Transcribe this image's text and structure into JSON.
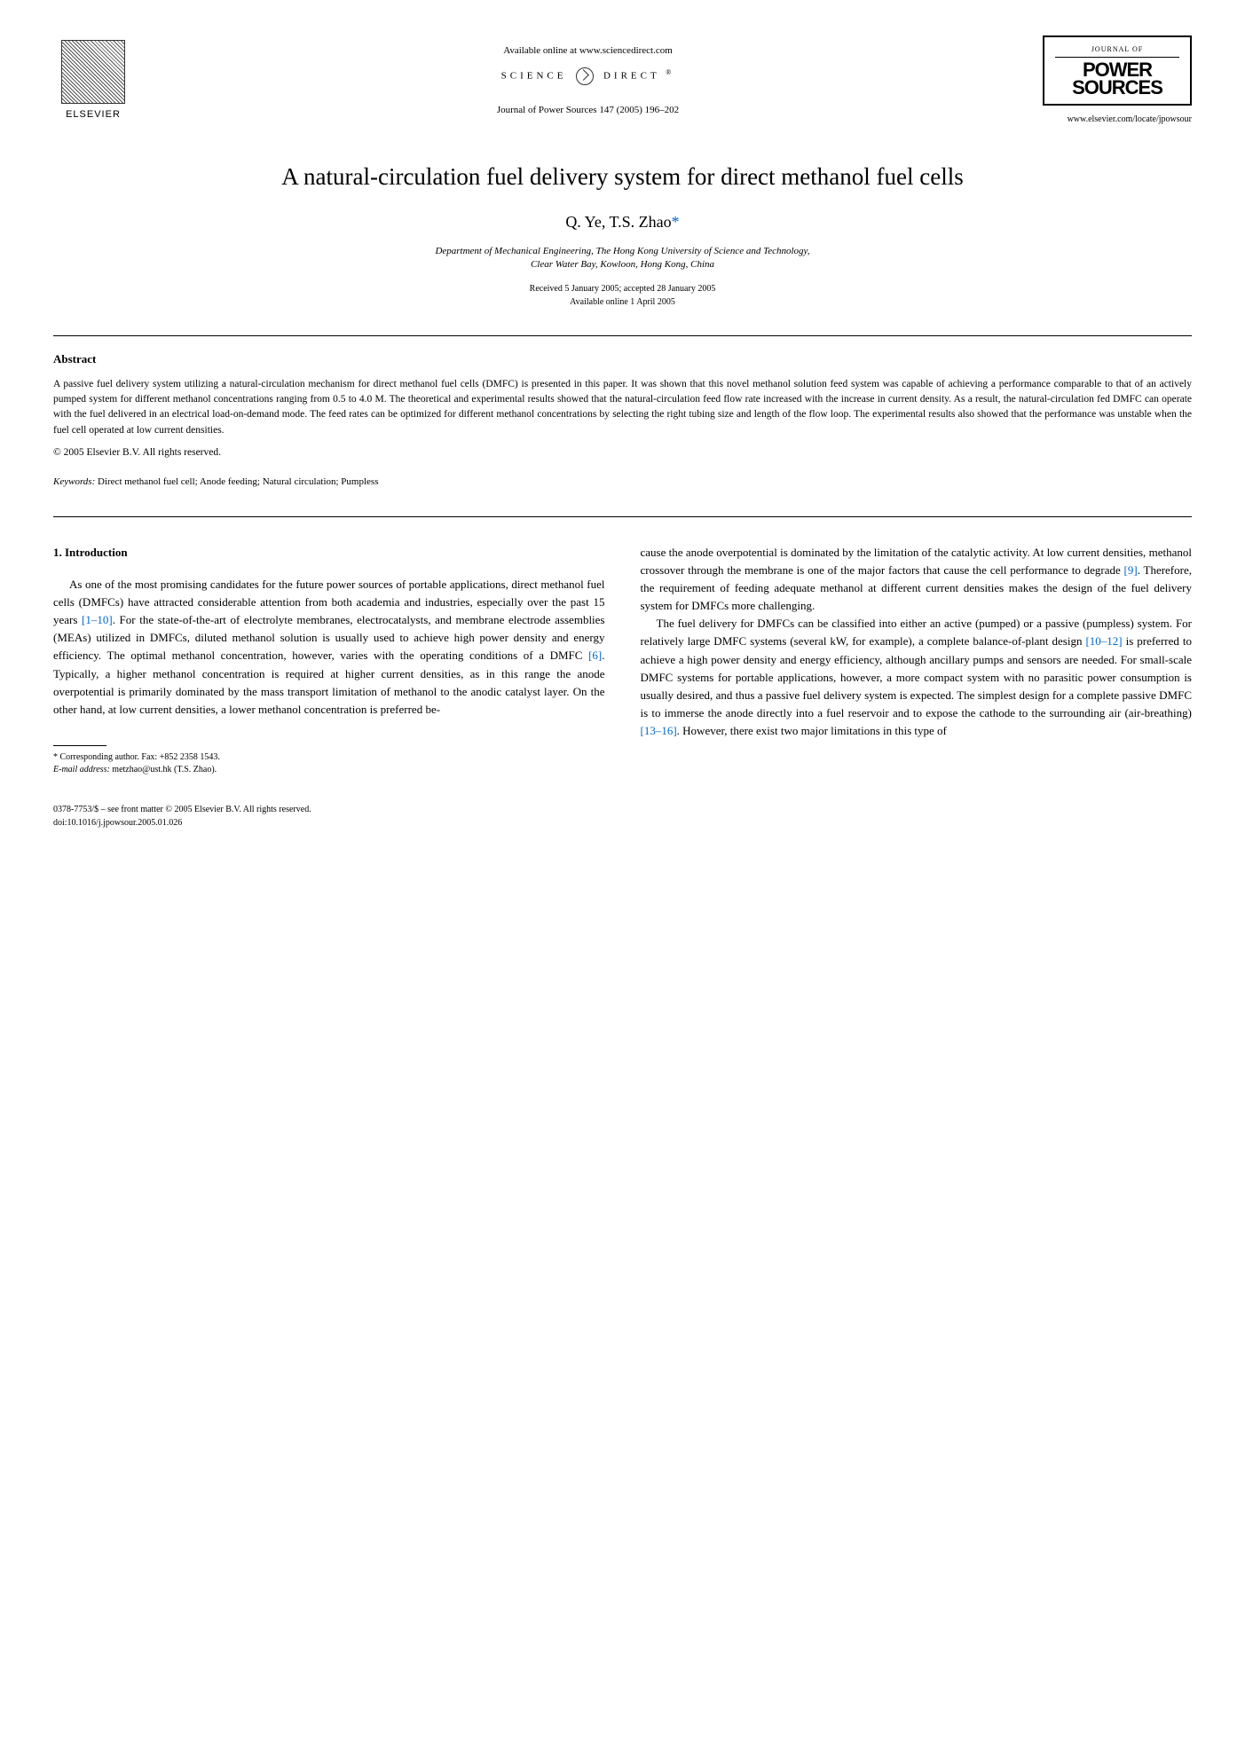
{
  "header": {
    "elsevier": "ELSEVIER",
    "available_online": "Available online at www.sciencedirect.com",
    "science": "SCIENCE",
    "direct": "DIRECT",
    "journal_citation": "Journal of Power Sources 147 (2005) 196–202",
    "journal_of": "JOURNAL OF",
    "power": "POWER",
    "sources": "SOURCES",
    "journal_url": "www.elsevier.com/locate/jpowsour"
  },
  "title": "A natural-circulation fuel delivery system for direct methanol fuel cells",
  "authors": "Q. Ye, T.S. Zhao",
  "star": "*",
  "affiliation_line1": "Department of Mechanical Engineering, The Hong Kong University of Science and Technology,",
  "affiliation_line2": "Clear Water Bay, Kowloon, Hong Kong, China",
  "dates_line1": "Received 5 January 2005; accepted 28 January 2005",
  "dates_line2": "Available online 1 April 2005",
  "abstract_heading": "Abstract",
  "abstract_text": "A passive fuel delivery system utilizing a natural-circulation mechanism for direct methanol fuel cells (DMFC) is presented in this paper. It was shown that this novel methanol solution feed system was capable of achieving a performance comparable to that of an actively pumped system for different methanol concentrations ranging from 0.5 to 4.0 M. The theoretical and experimental results showed that the natural-circulation feed flow rate increased with the increase in current density. As a result, the natural-circulation fed DMFC can operate with the fuel delivered in an electrical load-on-demand mode. The feed rates can be optimized for different methanol concentrations by selecting the right tubing size and length of the flow loop. The experimental results also showed that the performance was unstable when the fuel cell operated at low current densities.",
  "copyright": "© 2005 Elsevier B.V. All rights reserved.",
  "keywords_label": "Keywords:",
  "keywords_text": "  Direct methanol fuel cell; Anode feeding; Natural circulation; Pumpless",
  "section1_heading": "1. Introduction",
  "col1_p1a": "As one of the most promising candidates for the future power sources of portable applications, direct methanol fuel cells (DMFCs) have attracted considerable attention from both academia and industries, especially over the past 15 years ",
  "ref_1_10": "[1–10]",
  "col1_p1b": ". For the state-of-the-art of electrolyte membranes, electrocatalysts, and membrane electrode assemblies (MEAs) utilized in DMFCs, diluted methanol solution is usually used to achieve high power density and energy efficiency. The optimal methanol concentration, however, varies with the operating conditions of a DMFC ",
  "ref_6": "[6]",
  "col1_p1c": ". Typically, a higher methanol concentration is required at higher current densities, as in this range the anode overpotential is primarily dominated by the mass transport limitation of methanol to the anodic catalyst layer. On the other hand, at low current densities, a lower methanol concentration is preferred be-",
  "col2_p1a": "cause the anode overpotential is dominated by the limitation of the catalytic activity. At low current densities, methanol crossover through the membrane is one of the major factors that cause the cell performance to degrade ",
  "ref_9": "[9]",
  "col2_p1b": ". Therefore, the requirement of feeding adequate methanol at different current densities makes the design of the fuel delivery system for DMFCs more challenging.",
  "col2_p2a": "The fuel delivery for DMFCs can be classified into either an active (pumped) or a passive (pumpless) system. For relatively large DMFC systems (several kW, for example), a complete balance-of-plant design ",
  "ref_10_12": "[10–12]",
  "col2_p2b": " is preferred to achieve a high power density and energy efficiency, although ancillary pumps and sensors are needed. For small-scale DMFC systems for portable applications, however, a more compact system with no parasitic power consumption is usually desired, and thus a passive fuel delivery system is expected. The simplest design for a complete passive DMFC is to immerse the anode directly into a fuel reservoir and to expose the cathode to the surrounding air (air-breathing) ",
  "ref_13_16": "[13–16]",
  "col2_p2c": ". However, there exist two major limitations in this type of",
  "footnote_corresponding": "* Corresponding author. Fax: +852 2358 1543.",
  "footnote_email_label": "E-mail address:",
  "footnote_email": " metzhao@ust.hk (T.S. Zhao).",
  "footer_issn": "0378-7753/$ – see front matter © 2005 Elsevier B.V. All rights reserved.",
  "footer_doi": "doi:10.1016/j.jpowsour.2005.01.026"
}
